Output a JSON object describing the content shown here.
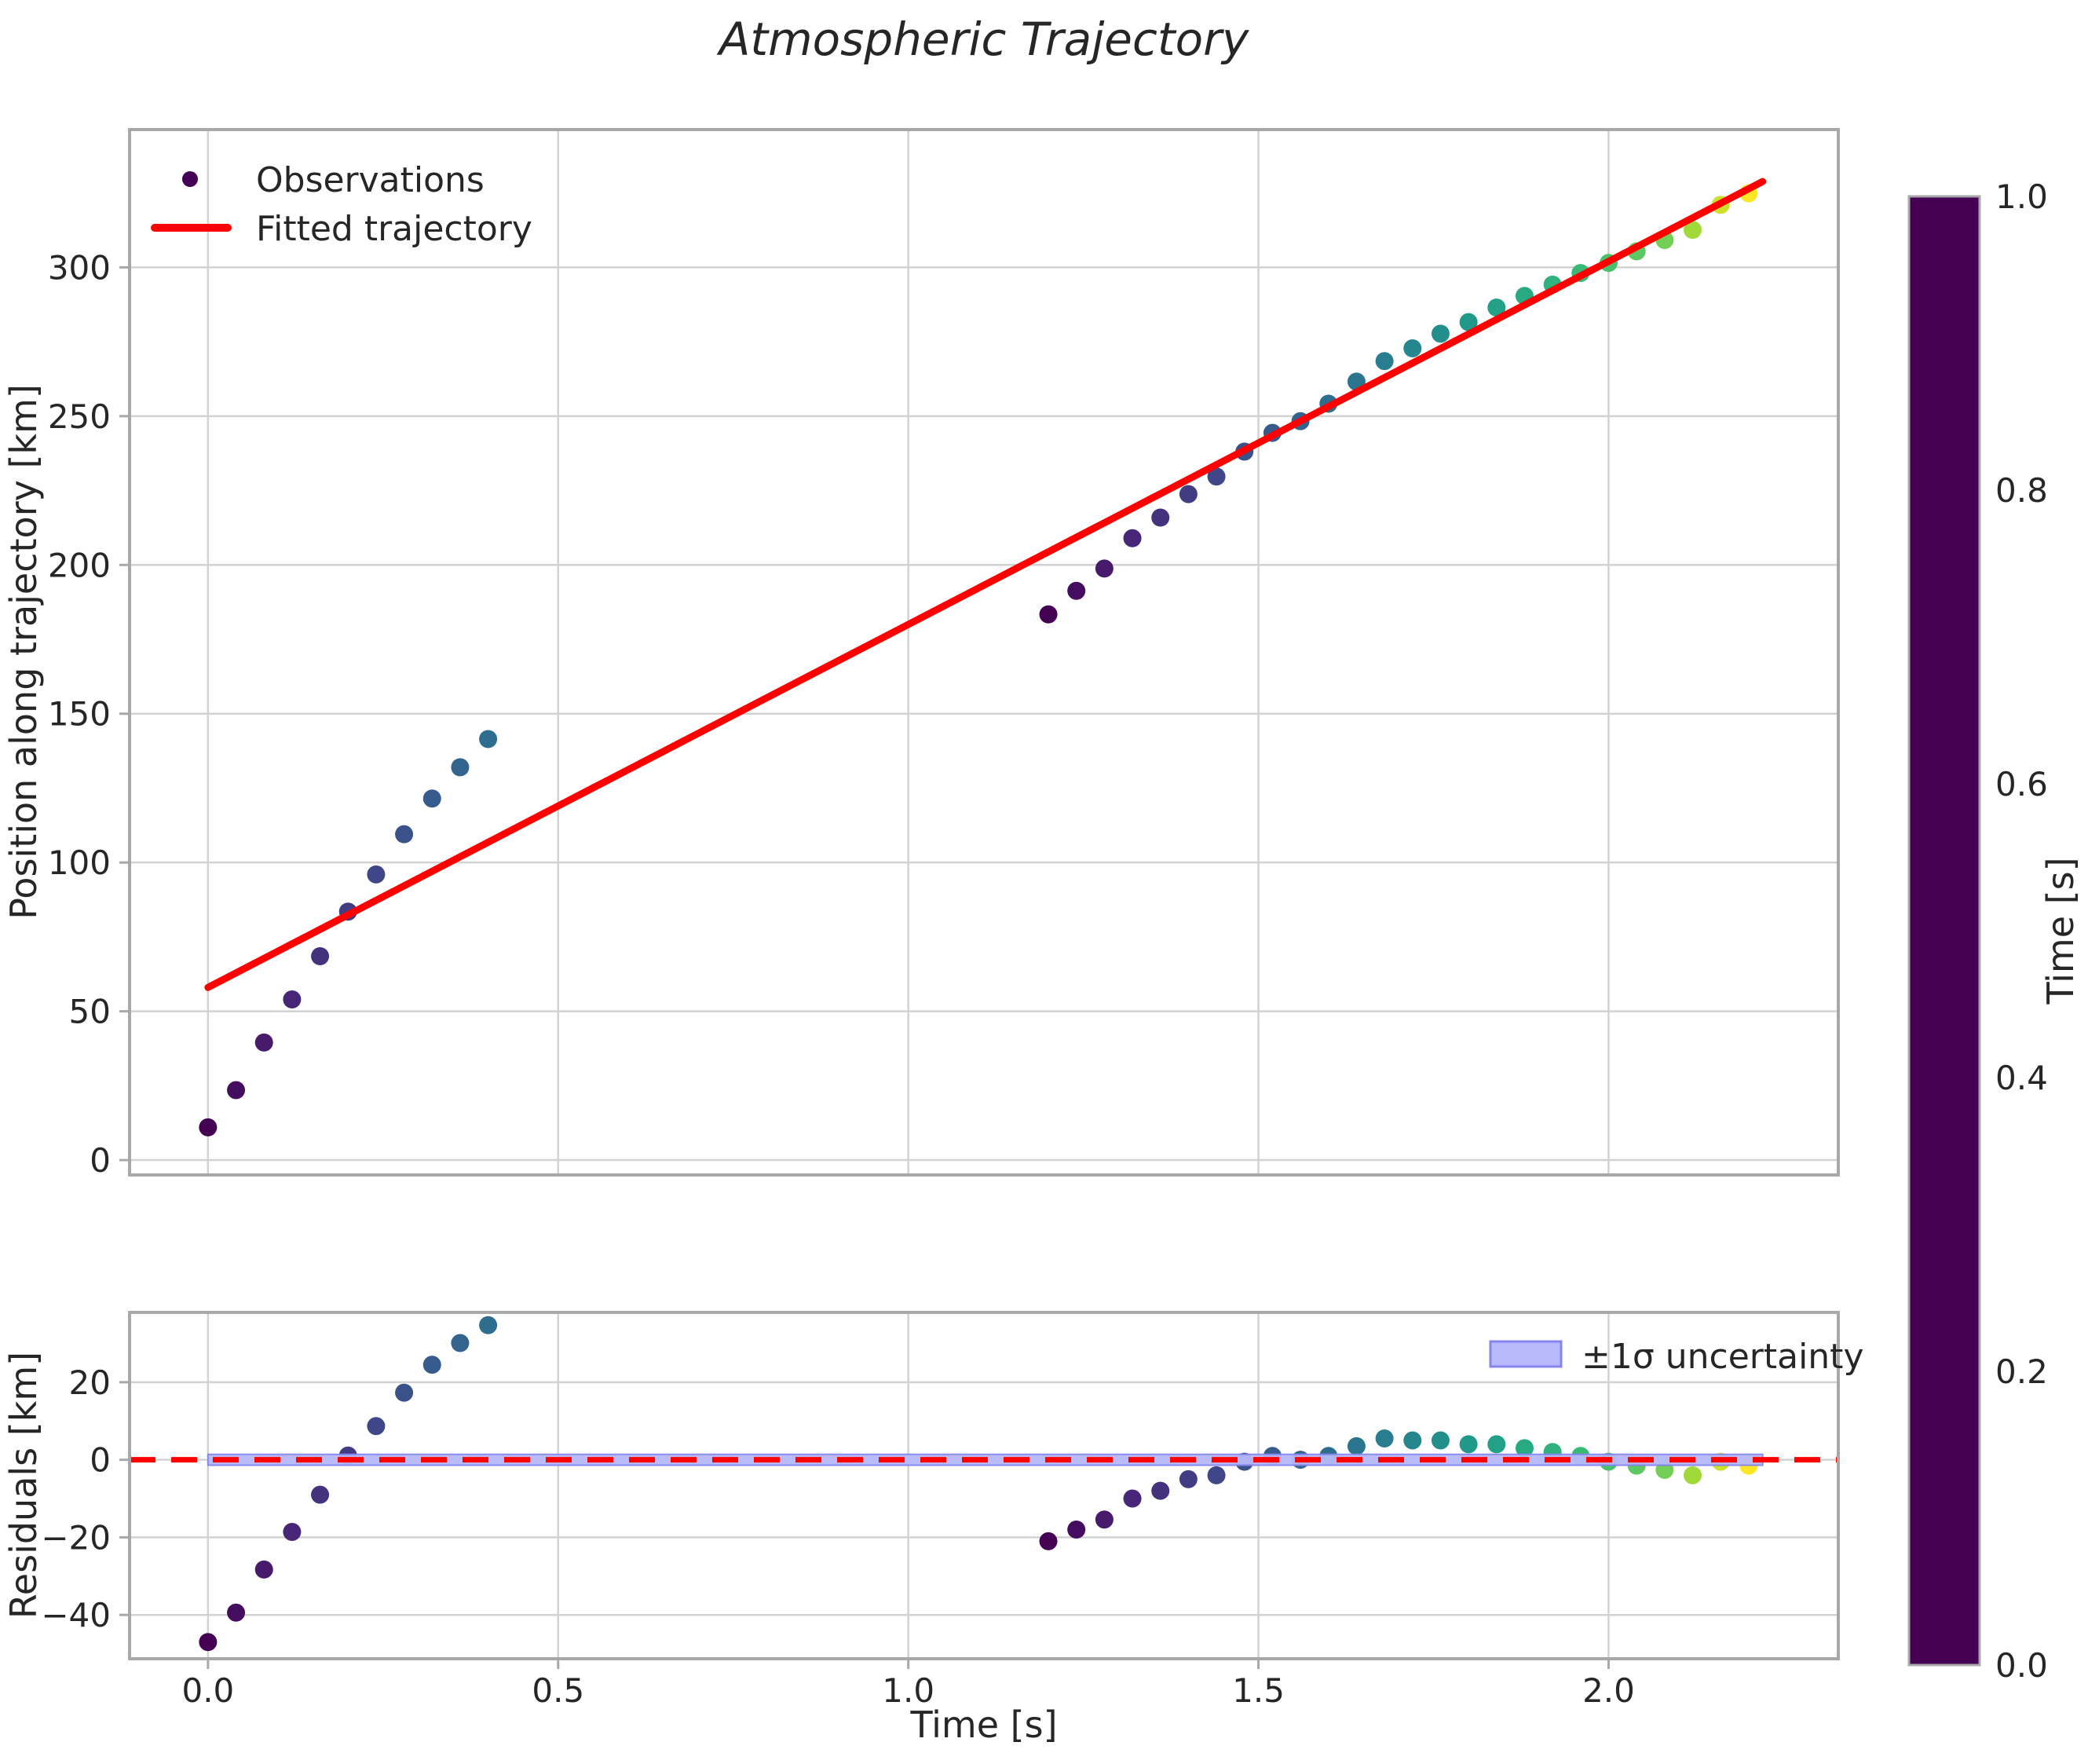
{
  "figure": {
    "background": "#ffffff"
  },
  "colors": {
    "fit_line": "#ff0000",
    "zero_line": "#ff0000",
    "band_fill": "#b7b9fa",
    "band_edge": "#8486f0",
    "grid": "#d2d2d2",
    "spine": "#a8a8a8",
    "text": "#262626",
    "legend_marker": "#440154",
    "viridis_stops": [
      [
        0.0,
        "#440154"
      ],
      [
        0.125,
        "#482878"
      ],
      [
        0.25,
        "#3e4a89"
      ],
      [
        0.375,
        "#31688e"
      ],
      [
        0.5,
        "#26828e"
      ],
      [
        0.625,
        "#1f9e89"
      ],
      [
        0.75,
        "#35b779"
      ],
      [
        0.875,
        "#6dcd59"
      ],
      [
        0.9375,
        "#b4de2c"
      ],
      [
        1.0,
        "#fde725"
      ]
    ]
  },
  "legend": {
    "observations": "Observations",
    "fitted": "Fitted trajectory",
    "band": "±1σ uncertainty"
  },
  "colorbar": {
    "label": "Time [s]",
    "min": 0.0,
    "max": 1.0,
    "tick_labels": [
      "0.0",
      "0.2",
      "0.4",
      "0.6",
      "0.8",
      "1.0"
    ],
    "tick_values": [
      0.0,
      0.2,
      0.4,
      0.6,
      0.8,
      1.0
    ],
    "colormap": "viridis"
  },
  "chart_data": [
    {
      "type": "scatter",
      "title": "Atmospheric Trajectory",
      "xlabel": "",
      "ylabel": "Position along trajectory [km]",
      "xlim": [
        -0.112,
        2.328
      ],
      "ylim": [
        -5,
        346.3
      ],
      "grid": true,
      "legend_position": "upper left",
      "x_tick_values": [
        0.0,
        0.5,
        1.0,
        1.5,
        2.0
      ],
      "x_tick_labels": [],
      "y_tick_values": [
        0,
        50,
        100,
        150,
        200,
        250,
        300
      ],
      "y_tick_labels": [
        "0",
        "50",
        "100",
        "150",
        "200",
        "250",
        "300"
      ],
      "series": [
        {
          "name": "Observations",
          "type": "scatter",
          "colormap": "viridis",
          "t": [
            0.0,
            0.04,
            0.08,
            0.12,
            0.16,
            0.2,
            0.24,
            0.28,
            0.32,
            0.36,
            0.4,
            1.2,
            1.24,
            1.28,
            1.32,
            1.36,
            1.4,
            1.44,
            1.48,
            1.52,
            1.56,
            1.6,
            1.64,
            1.68,
            1.72,
            1.76,
            1.8,
            1.84,
            1.88,
            1.92,
            1.96,
            2.0,
            2.04,
            2.08,
            2.12,
            2.16,
            2.2
          ],
          "pos": [
            11.0,
            23.5,
            39.5,
            54.0,
            68.5,
            83.5,
            96.0,
            109.5,
            121.5,
            132.0,
            141.5,
            183.4,
            191.3,
            198.8,
            209.0,
            215.9,
            223.8,
            229.7,
            238.1,
            244.4,
            248.3,
            254.2,
            261.6,
            268.5,
            272.8,
            277.7,
            281.6,
            286.5,
            290.4,
            294.2,
            298.1,
            301.5,
            305.4,
            309.2,
            312.6,
            321.0,
            324.9
          ],
          "color_value": [
            0.0,
            0.04,
            0.08,
            0.12,
            0.16,
            0.2,
            0.24,
            0.28,
            0.32,
            0.36,
            0.4,
            0.0,
            0.04,
            0.08,
            0.12,
            0.16,
            0.2,
            0.24,
            0.28,
            0.32,
            0.36,
            0.4,
            0.44,
            0.48,
            0.52,
            0.56,
            0.6,
            0.64,
            0.68,
            0.72,
            0.76,
            0.8,
            0.84,
            0.88,
            0.92,
            0.96,
            1.0
          ]
        },
        {
          "name": "Fitted trajectory",
          "type": "line",
          "color": "#ff0000",
          "t0": 0.0,
          "t1": 2.22,
          "intercept": 58,
          "slope": 122
        }
      ]
    },
    {
      "type": "scatter",
      "title": "",
      "xlabel": "Time [s]",
      "ylabel": "Residuals [km]",
      "xlim": [
        -0.112,
        2.328
      ],
      "ylim": [
        -51.3,
        38
      ],
      "grid": true,
      "legend_position": "upper right",
      "x_tick_values": [
        0.0,
        0.5,
        1.0,
        1.5,
        2.0
      ],
      "x_tick_labels": [
        "0.0",
        "0.5",
        "1.0",
        "1.5",
        "2.0"
      ],
      "y_tick_values": [
        20,
        0,
        -20,
        -40
      ],
      "y_tick_labels": [
        "20",
        "0",
        "−20",
        "−40"
      ],
      "zero_line": {
        "y": 0,
        "style": "dashed",
        "color": "#ff0000"
      },
      "uncertainty_band": {
        "x_min": 0.0,
        "x_max": 2.22,
        "y_half_width_km": 1.4,
        "label": "±1σ uncertainty"
      },
      "series": [
        {
          "name": "Residuals",
          "type": "scatter",
          "colormap": "viridis",
          "t": [
            0.0,
            0.04,
            0.08,
            0.12,
            0.16,
            0.2,
            0.24,
            0.28,
            0.32,
            0.36,
            0.4,
            1.2,
            1.24,
            1.28,
            1.32,
            1.36,
            1.4,
            1.44,
            1.48,
            1.52,
            1.56,
            1.6,
            1.64,
            1.68,
            1.72,
            1.76,
            1.8,
            1.84,
            1.88,
            1.92,
            1.96,
            2.0,
            2.04,
            2.08,
            2.12,
            2.16,
            2.2
          ],
          "res": [
            -47.0,
            -39.4,
            -28.3,
            -18.6,
            -9.0,
            1.1,
            8.7,
            17.3,
            24.5,
            30.1,
            34.7,
            -21.0,
            -18.0,
            -15.4,
            -10.0,
            -8.0,
            -5.0,
            -4.0,
            -0.5,
            1.0,
            0.0,
            1.0,
            3.5,
            5.5,
            5.0,
            5.0,
            4.0,
            4.0,
            3.0,
            2.0,
            1.0,
            -0.5,
            -1.5,
            -2.6,
            -4.0,
            -0.5,
            -1.5
          ],
          "color_value": [
            0.0,
            0.04,
            0.08,
            0.12,
            0.16,
            0.2,
            0.24,
            0.28,
            0.32,
            0.36,
            0.4,
            0.0,
            0.04,
            0.08,
            0.12,
            0.16,
            0.2,
            0.24,
            0.28,
            0.32,
            0.36,
            0.4,
            0.44,
            0.48,
            0.52,
            0.56,
            0.6,
            0.64,
            0.68,
            0.72,
            0.76,
            0.8,
            0.84,
            0.88,
            0.92,
            0.96,
            1.0
          ]
        }
      ]
    }
  ]
}
